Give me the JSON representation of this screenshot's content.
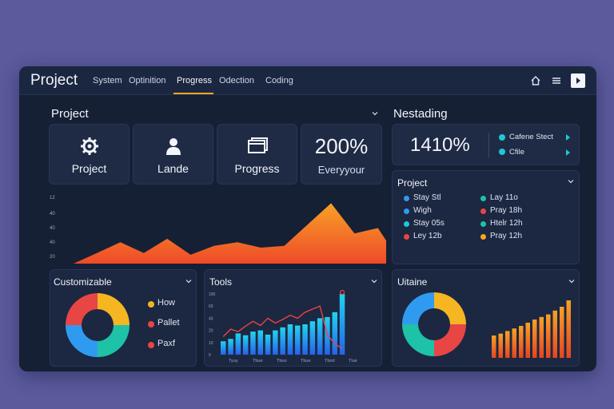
{
  "header": {
    "title": "Project",
    "tabs": [
      "System",
      "Optinition",
      "Progress",
      "Odection",
      "Coding"
    ],
    "active_tab": "Progress"
  },
  "overview": {
    "title": "Project",
    "stats": [
      {
        "icon": "gear-icon",
        "label": "Project"
      },
      {
        "icon": "person-icon",
        "label": "Lande"
      },
      {
        "icon": "window-icon",
        "label": "Progress"
      },
      {
        "value": "200%",
        "label": "Everyyour"
      }
    ],
    "area_y_ticks": [
      "12",
      "40",
      "40",
      "40",
      "20"
    ]
  },
  "side": {
    "title": "Nestading",
    "big_value": "1410%",
    "legend": [
      {
        "label": "Cafene Stect",
        "color": "#1ec9d6"
      },
      {
        "label": "Cfile",
        "color": "#1ec9d6"
      }
    ],
    "schedule_title": "Project",
    "schedule": [
      {
        "text": "Stay Stl",
        "color": "#2f9bf0"
      },
      {
        "text": "Lay 11o",
        "color": "#1ec2a6"
      },
      {
        "text": "Wigh",
        "color": "#2f9bf0"
      },
      {
        "text": "Pray 18h",
        "color": "#e84545"
      },
      {
        "text": "Stay 05s",
        "color": "#1ec9d6"
      },
      {
        "text": "Htelr 12h",
        "color": "#1ec2a6"
      },
      {
        "text": "Ley 12b",
        "color": "#e84545"
      },
      {
        "text": "Pray 12h",
        "color": "#f5a623"
      }
    ]
  },
  "customizable": {
    "title": "Customizable",
    "donut": [
      {
        "label": "How",
        "value": 25,
        "color": "#f5b622"
      },
      {
        "label": "Pallet",
        "value": 25,
        "color": "#1ec2a6"
      },
      {
        "label": "Paxf",
        "value": 25,
        "color": "#2f9bf0"
      },
      {
        "value": 25,
        "color": "#e84545"
      }
    ]
  },
  "tools": {
    "title": "Tools",
    "y_ticks": [
      "100",
      "60",
      "40",
      "20",
      "10",
      "0"
    ],
    "x_ticks": [
      "Tyuy",
      "Tbue",
      "Tbuo",
      "Tbue",
      "Tbod",
      "Tlue"
    ]
  },
  "uitaine": {
    "title": "Uitaine",
    "donut": [
      {
        "value": 25,
        "color": "#f5b622"
      },
      {
        "value": 25,
        "color": "#e84545"
      },
      {
        "value": 25,
        "color": "#1ec2a6"
      },
      {
        "value": 25,
        "color": "#2f9bf0"
      }
    ]
  },
  "chart_data": [
    {
      "type": "area",
      "title": "",
      "x": [
        0,
        1,
        2,
        3,
        4,
        5,
        6,
        7,
        8,
        9,
        10,
        11,
        12,
        13,
        14
      ],
      "values": [
        0,
        6,
        12,
        6,
        14,
        5,
        10,
        12,
        9,
        10,
        22,
        34,
        17,
        20,
        0
      ],
      "ylim": [
        0,
        40
      ]
    },
    {
      "type": "bar",
      "title": "Tools",
      "categories": [
        "1",
        "2",
        "3",
        "4",
        "5",
        "6",
        "7",
        "8",
        "9",
        "10",
        "11",
        "12",
        "13",
        "14",
        "15",
        "16",
        "17"
      ],
      "values": [
        22,
        26,
        35,
        32,
        38,
        40,
        33,
        40,
        45,
        50,
        48,
        50,
        55,
        60,
        62,
        70,
        100
      ],
      "line": [
        30,
        42,
        38,
        47,
        55,
        48,
        60,
        52,
        58,
        65,
        60,
        70,
        75,
        80,
        33,
        18,
        10
      ],
      "ylim": [
        0,
        100
      ]
    },
    {
      "type": "bar",
      "title": "Uitaine",
      "categories": [
        "1",
        "2",
        "3",
        "4",
        "5",
        "6",
        "7",
        "8",
        "9",
        "10",
        "11",
        "12"
      ],
      "values": [
        35,
        38,
        42,
        46,
        50,
        55,
        60,
        64,
        68,
        74,
        80,
        90
      ],
      "ylim": [
        0,
        100
      ]
    }
  ]
}
